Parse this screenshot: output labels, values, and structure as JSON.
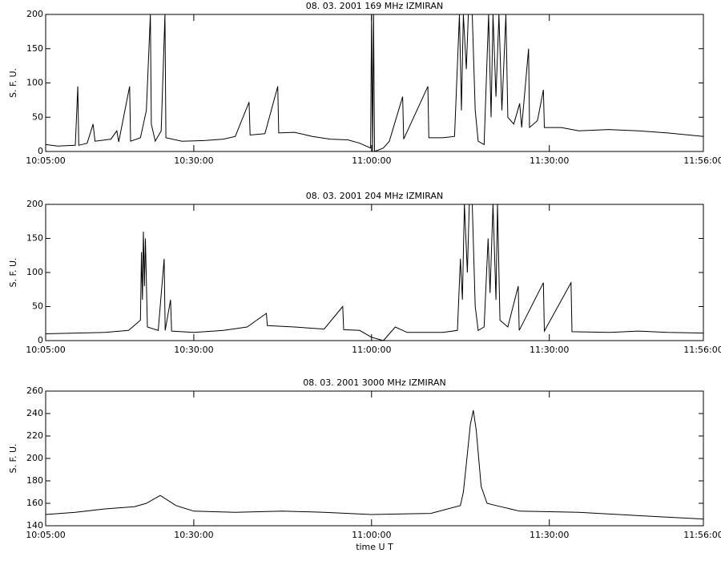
{
  "chart_data": [
    {
      "type": "line",
      "title": "08.  03.  2001    169 MHz    IZMIRAN",
      "ylabel": "S. F. U.",
      "color": "#000000",
      "xlim": [
        "10:05:00",
        "11:56:00"
      ],
      "xticks": [
        "10:05:00",
        "10:30:00",
        "11:00:00",
        "11:30:00",
        "11:56:00"
      ],
      "ylim": [
        0,
        200
      ],
      "yticks": [
        0,
        50,
        100,
        150,
        200
      ],
      "x": [
        "10:05:00",
        "10:07:00",
        "10:10:00",
        "10:10:25",
        "10:10:35",
        "10:12:00",
        "10:13:00",
        "10:13:20",
        "10:16:00",
        "10:17:00",
        "10:17:20",
        "10:19:10",
        "10:19:20",
        "10:21:00",
        "10:22:00",
        "10:22:40",
        "10:22:50",
        "10:23:30",
        "10:24:30",
        "10:25:08",
        "10:25:18",
        "10:28:00",
        "10:32:00",
        "10:35:00",
        "10:37:00",
        "10:39:20",
        "10:39:30",
        "10:42:00",
        "10:44:10",
        "10:44:20",
        "10:47:00",
        "10:50:00",
        "10:53:00",
        "10:56:00",
        "10:58:00",
        "10:59:50",
        "11:00:00",
        "11:00:10",
        "11:00:20",
        "11:00:30",
        "11:02:00",
        "11:03:00",
        "11:05:15",
        "11:05:25",
        "11:09:30",
        "11:09:40",
        "11:12:00",
        "11:14:00",
        "11:14:50",
        "11:15:10",
        "11:15:30",
        "11:16:00",
        "11:16:20",
        "11:17:00",
        "11:17:30",
        "11:18:00",
        "11:19:00",
        "11:19:45",
        "11:20:10",
        "11:20:30",
        "11:21:00",
        "11:21:30",
        "11:22:00",
        "11:22:40",
        "11:23:00",
        "11:24:00",
        "11:25:00",
        "11:25:20",
        "11:26:30",
        "11:26:40",
        "11:28:00",
        "11:29:00",
        "11:29:10",
        "11:32:00",
        "11:35:00",
        "11:40:00",
        "11:45:00",
        "11:50:00",
        "11:56:00"
      ],
      "values": [
        10,
        8,
        9,
        95,
        9,
        12,
        40,
        15,
        18,
        30,
        14,
        95,
        15,
        20,
        60,
        200,
        40,
        15,
        30,
        200,
        20,
        15,
        16,
        18,
        22,
        72,
        24,
        26,
        95,
        27,
        28,
        22,
        18,
        17,
        12,
        5,
        200,
        0,
        200,
        0,
        5,
        15,
        80,
        18,
        95,
        20,
        20,
        22,
        200,
        60,
        200,
        120,
        200,
        200,
        60,
        15,
        10,
        200,
        50,
        200,
        80,
        200,
        60,
        200,
        50,
        40,
        70,
        35,
        150,
        35,
        45,
        90,
        35,
        35,
        30,
        32,
        30,
        27,
        22
      ]
    },
    {
      "type": "line",
      "title": "08.  03.  2001    204 MHz    IZMIRAN",
      "ylabel": "S. F. U.",
      "color": "#000000",
      "xlim": [
        "10:05:00",
        "11:56:00"
      ],
      "xticks": [
        "10:05:00",
        "10:30:00",
        "11:00:00",
        "11:30:00",
        "11:56:00"
      ],
      "ylim": [
        0,
        200
      ],
      "yticks": [
        0,
        50,
        100,
        150,
        200
      ],
      "x": [
        "10:05:00",
        "10:10:00",
        "10:15:00",
        "10:19:00",
        "10:21:00",
        "10:21:10",
        "10:21:20",
        "10:21:30",
        "10:21:40",
        "10:21:50",
        "10:22:10",
        "10:24:00",
        "10:25:00",
        "10:25:10",
        "10:26:05",
        "10:26:15",
        "10:30:00",
        "10:35:00",
        "10:39:00",
        "10:42:15",
        "10:42:25",
        "10:47:00",
        "10:52:00",
        "10:55:08",
        "10:55:18",
        "10:58:00",
        "11:00:00",
        "11:02:00",
        "11:03:00",
        "11:04:00",
        "11:06:00",
        "11:12:00",
        "11:14:30",
        "11:15:00",
        "11:15:20",
        "11:15:40",
        "11:16:10",
        "11:16:30",
        "11:17:00",
        "11:17:30",
        "11:18:00",
        "11:19:00",
        "11:19:40",
        "11:20:00",
        "11:20:30",
        "11:21:00",
        "11:21:15",
        "11:21:40",
        "11:23:00",
        "11:24:45",
        "11:24:55",
        "11:29:00",
        "11:29:10",
        "11:33:40",
        "11:33:50",
        "11:40:00",
        "11:45:00",
        "11:50:00",
        "11:56:00"
      ],
      "values": [
        10,
        11,
        12,
        15,
        30,
        130,
        60,
        160,
        80,
        150,
        20,
        15,
        120,
        15,
        60,
        14,
        12,
        15,
        20,
        40,
        22,
        20,
        17,
        50,
        16,
        15,
        5,
        0,
        10,
        20,
        12,
        12,
        15,
        120,
        60,
        200,
        100,
        200,
        200,
        50,
        15,
        20,
        150,
        70,
        200,
        60,
        200,
        30,
        20,
        80,
        15,
        85,
        14,
        85,
        13,
        12,
        14,
        12,
        11
      ]
    },
    {
      "type": "line",
      "title": "08.  03.  2001    3000 MHz    IZMIRAN",
      "ylabel": "S. F. U.",
      "xlabel": "time  U T",
      "color": "#000000",
      "xlim": [
        "10:05:00",
        "11:56:00"
      ],
      "xticks": [
        "10:05:00",
        "10:30:00",
        "11:00:00",
        "11:30:00",
        "11:56:00"
      ],
      "ylim": [
        140,
        260
      ],
      "yticks": [
        140,
        160,
        180,
        200,
        220,
        240,
        260
      ],
      "x": [
        "10:05:00",
        "10:10:00",
        "10:15:00",
        "10:20:00",
        "10:22:00",
        "10:24:20",
        "10:27:00",
        "10:30:00",
        "10:37:00",
        "10:45:00",
        "10:52:00",
        "11:00:00",
        "11:10:00",
        "11:15:00",
        "11:15:30",
        "11:16:00",
        "11:16:40",
        "11:17:10",
        "11:17:40",
        "11:18:30",
        "11:19:30",
        "11:21:00",
        "11:25:00",
        "11:35:00",
        "11:45:00",
        "11:56:00"
      ],
      "values": [
        150,
        152,
        155,
        157,
        160,
        167,
        158,
        153,
        152,
        153,
        152,
        150,
        151,
        158,
        170,
        195,
        230,
        243,
        225,
        175,
        160,
        158,
        153,
        152,
        149,
        146
      ]
    }
  ]
}
